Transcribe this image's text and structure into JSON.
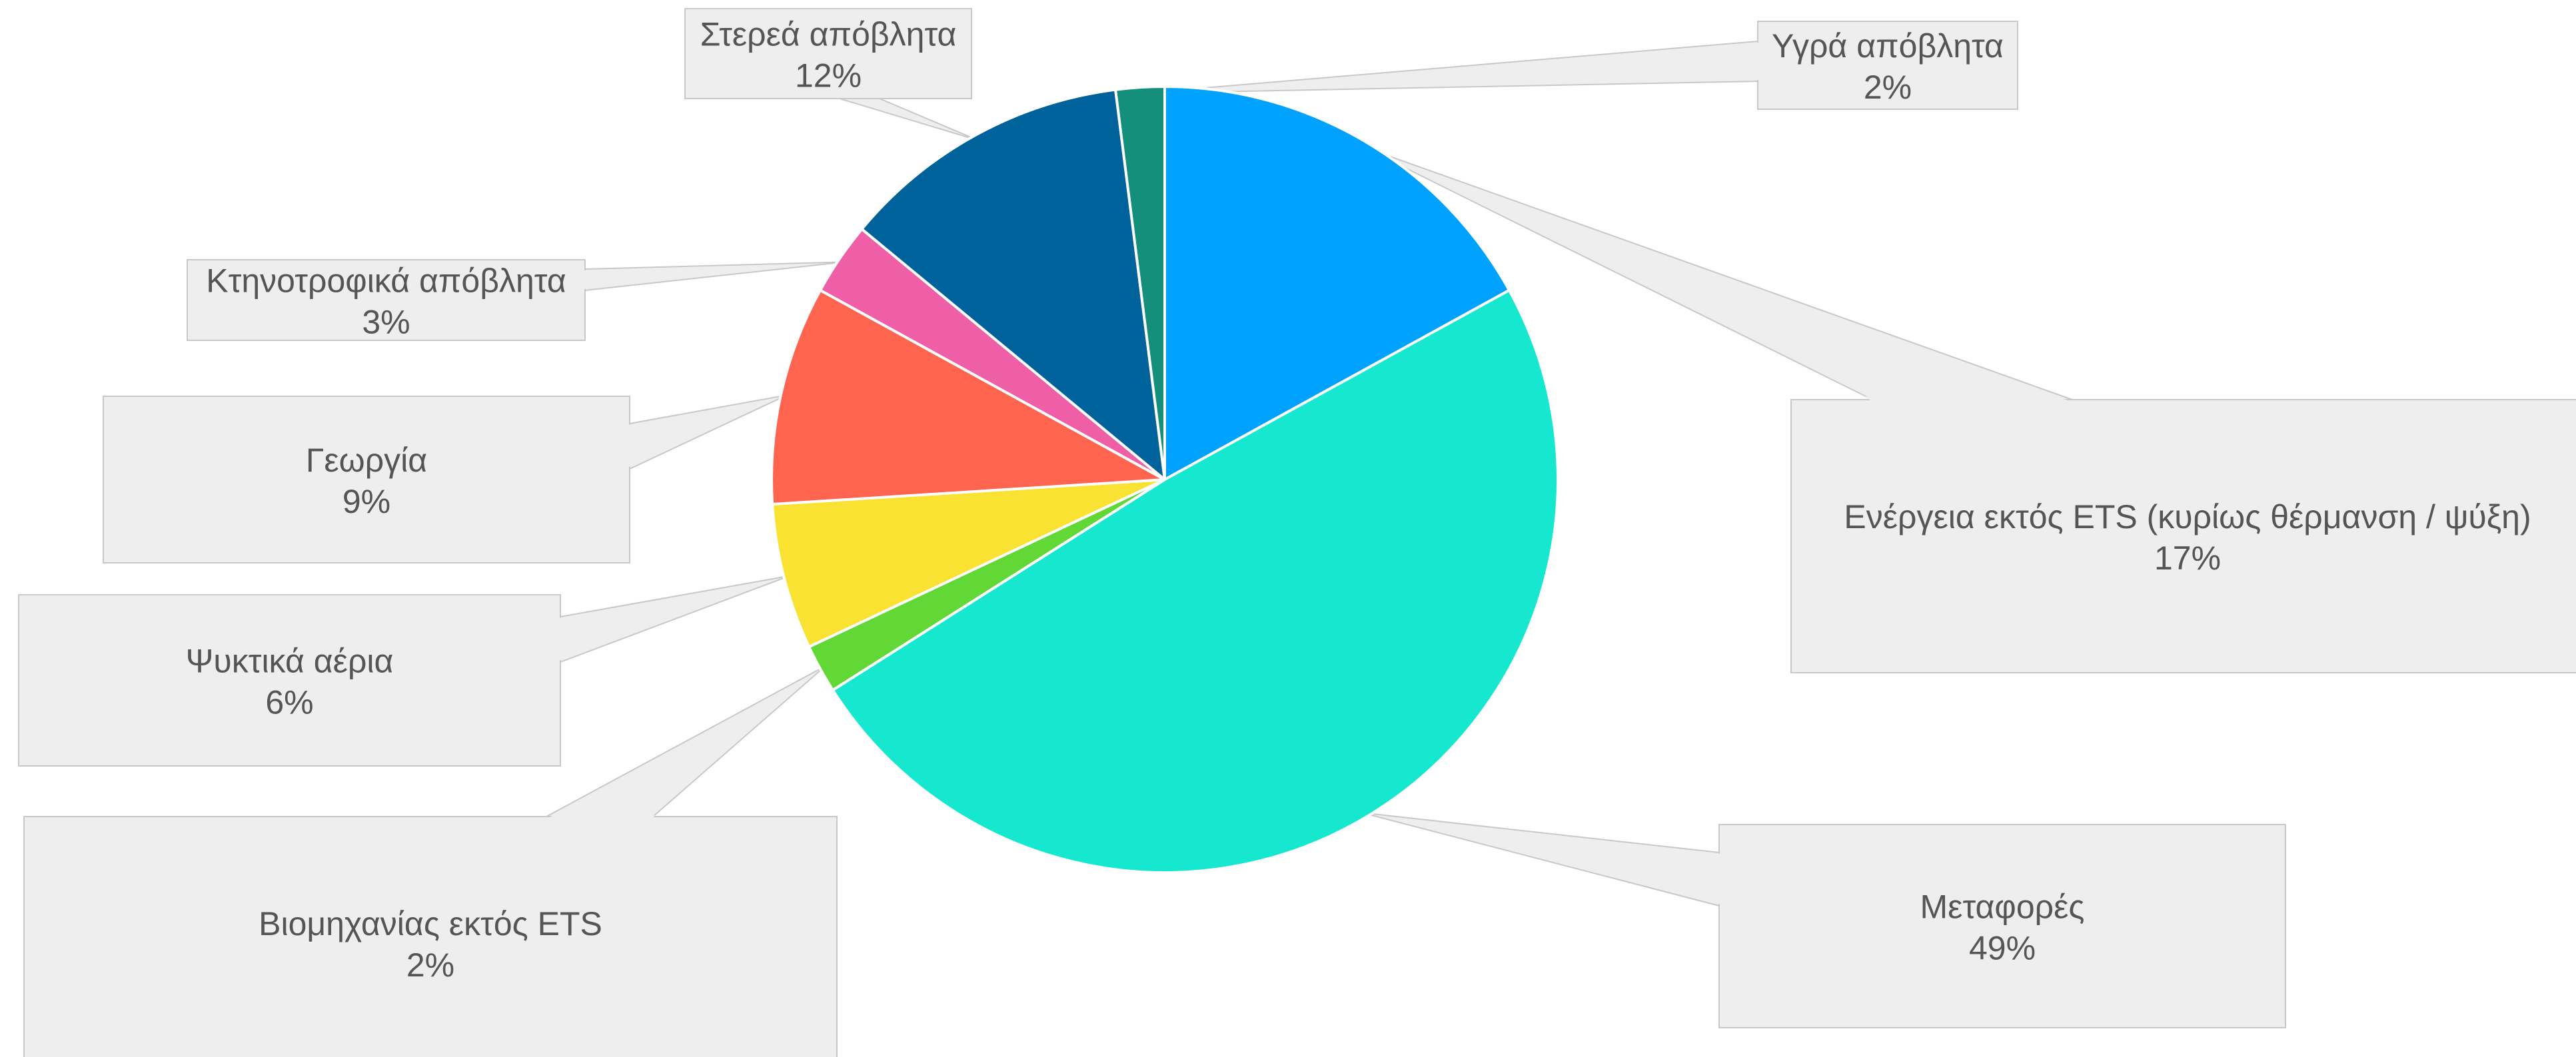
{
  "chart_data": {
    "type": "pie",
    "start_angle_deg": 0,
    "direction": "clockwise",
    "slices": [
      {
        "label": "Ενέργεια εκτός ETS (κυρίως θέρμανση / ψύξη)",
        "value": 17,
        "value_label": "17%",
        "color": "#00A2FF"
      },
      {
        "label": "Μεταφορές",
        "value": 49,
        "value_label": "49%",
        "color": "#16E7CF"
      },
      {
        "label": "Βιομηχανίας εκτός ETS",
        "value": 2,
        "value_label": "2%",
        "color": "#61D836"
      },
      {
        "label": "Ψυκτικά αέρια",
        "value": 6,
        "value_label": "6%",
        "color": "#FAE232"
      },
      {
        "label": "Γεωργία",
        "value": 9,
        "value_label": "9%",
        "color": "#FF644E"
      },
      {
        "label": "Κτηνοτροφικά απόβλητα",
        "value": 3,
        "value_label": "3%",
        "color": "#EF5FA7"
      },
      {
        "label": "Στερεά απόβλητα",
        "value": 12,
        "value_label": "12%",
        "color": "#00629A"
      },
      {
        "label": "Υγρά απόβλητα",
        "value": 2,
        "value_label": "2%",
        "color": "#138F7B"
      }
    ],
    "callout_fill": "#EEEEEE",
    "callout_stroke": "#C8C8C8",
    "callout_text_color": "#555555",
    "slice_border_color": "#FFFFFF"
  }
}
